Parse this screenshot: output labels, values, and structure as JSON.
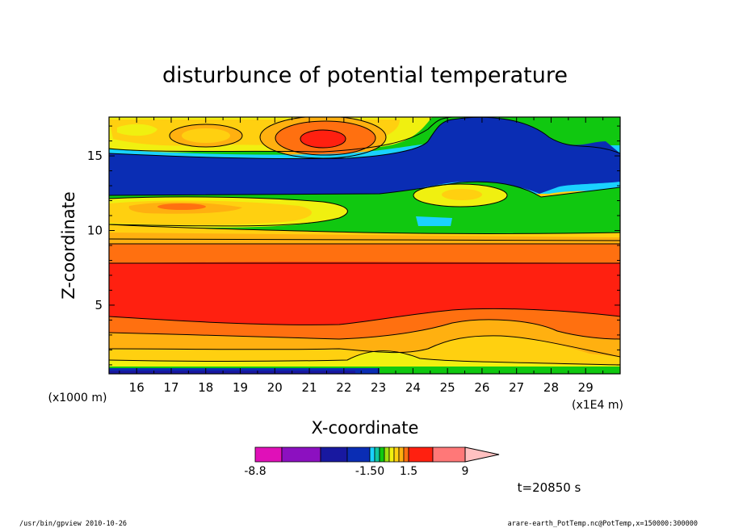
{
  "chart_data": {
    "type": "heatmap",
    "title": "disturbunce of potential temperature",
    "xlabel": "X-coordinate",
    "ylabel": "Z-coordinate",
    "x_unit_left": "(x1000 m)",
    "x_unit_right": "(x1E4 m)",
    "xlim": [
      15.2,
      30.0
    ],
    "ylim": [
      0.4,
      17.6
    ],
    "x_ticks": [
      16,
      17,
      18,
      19,
      20,
      21,
      22,
      23,
      24,
      25,
      26,
      27,
      28,
      29
    ],
    "y_ticks": [
      5,
      10,
      15
    ],
    "colorbar": {
      "orientation": "horizontal",
      "levels": [
        -8.8,
        -6.6,
        -4.4,
        -2.2,
        -1.5,
        -1.1,
        -0.75,
        -0.375,
        0,
        0.375,
        0.75,
        1.1,
        1.5,
        3.0,
        6.0,
        9.0
      ],
      "tick_labels": [
        "-8.8",
        "-1.50",
        "1.5",
        "9"
      ],
      "colors": [
        "#e010b8",
        "#8c10c0",
        "#1818a0",
        "#0a2db4",
        "#1ad2ff",
        "#10c8a0",
        "#10c810",
        "#a0e010",
        "#f0f010",
        "#ffd010",
        "#ffb010",
        "#ff7010",
        "#ff2010",
        "#ff7878",
        "#ffc0c0"
      ]
    },
    "time_label": "t=20850 s",
    "grid": false
  },
  "footer": {
    "left": "/usr/bin/gpview   2010-10-26",
    "right": "arare-earth_PotTemp.nc@PotTemp,x=150000:300000"
  },
  "colors": {
    "dark_blue": "#0a2db4",
    "cyan": "#1ad2ff",
    "green": "#10c810",
    "yellow": "#f0f010",
    "light_orange": "#ffd010",
    "orange": "#ffb010",
    "dark_orange": "#ff7010",
    "red": "#ff2010"
  }
}
